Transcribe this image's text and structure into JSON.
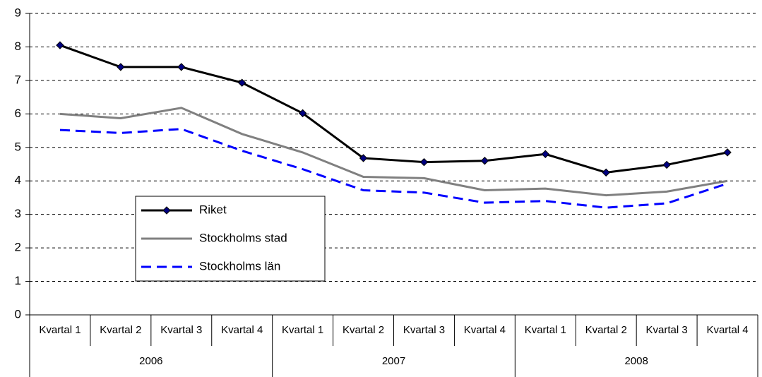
{
  "chart_data": {
    "type": "line",
    "categories": [
      "Kvartal 1",
      "Kvartal 2",
      "Kvartal 3",
      "Kvartal 4",
      "Kvartal 1",
      "Kvartal 2",
      "Kvartal 3",
      "Kvartal 4",
      "Kvartal 1",
      "Kvartal 2",
      "Kvartal 3",
      "Kvartal 4"
    ],
    "category_groups": [
      "2006",
      "2007",
      "2008"
    ],
    "series": [
      {
        "name": "Riket",
        "color": "#000000",
        "marker_color": "#000080",
        "dash": false,
        "marker": true,
        "values": [
          8.05,
          7.4,
          7.4,
          6.93,
          6.02,
          4.68,
          4.56,
          4.6,
          4.8,
          4.25,
          4.48,
          4.85
        ]
      },
      {
        "name": "Stockholms stad",
        "color": "#808080",
        "dash": false,
        "marker": false,
        "values": [
          6.0,
          5.87,
          6.18,
          5.4,
          4.85,
          4.12,
          4.08,
          3.72,
          3.77,
          3.57,
          3.68,
          4.0
        ]
      },
      {
        "name": "Stockholms län",
        "color": "#0000ff",
        "dash": true,
        "marker": false,
        "values": [
          5.52,
          5.43,
          5.55,
          4.9,
          4.35,
          3.72,
          3.65,
          3.35,
          3.4,
          3.2,
          3.33,
          3.92
        ]
      }
    ],
    "ylim": [
      0,
      9
    ],
    "yticks": [
      0,
      1,
      2,
      3,
      4,
      5,
      6,
      7,
      8,
      9
    ],
    "grid": true
  }
}
